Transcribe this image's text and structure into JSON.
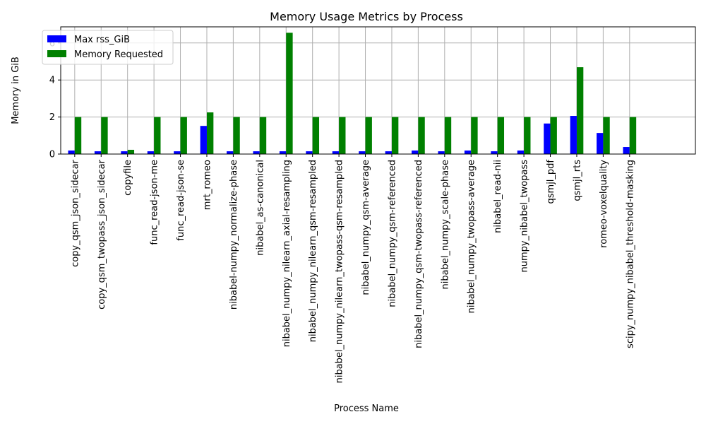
{
  "chart_data": {
    "type": "bar",
    "title": "Memory Usage Metrics by Process",
    "xlabel": "Process Name",
    "ylabel": "Memory in GiB",
    "ylim": [
      0,
      6.87
    ],
    "xlim": [
      -0.53,
      23.49
    ],
    "yticks": [
      0,
      2,
      4,
      6
    ],
    "grid": true,
    "legend_position": "upper-left",
    "categories": [
      "copy_qsm_json_sidecar",
      "copy_qsm_twopass_json_sidecar",
      "copyfile",
      "func_read-json-me",
      "func_read-json-se",
      "mrt_romeo",
      "nibabel-numpy_normalize-phase",
      "nibabel_as-canonical",
      "nibabel_numpy_nilearn_axial-resampling",
      "nibabel_numpy_nilearn_qsm-resampled",
      "nibabel_numpy_nilearn_twopass-qsm-resampled",
      "nibabel_numpy_qsm-average",
      "nibabel_numpy_qsm-referenced",
      "nibabel_numpy_qsm-twopass-referenced",
      "nibabel_numpy_scale-phase",
      "nibabel_numpy_twopass-average",
      "nibabel_read-nii",
      "numpy_nibabel_twopass",
      "qsmjl_pdf",
      "qsmjl_rts",
      "romeo-voxelquality",
      "scipy_numpy_nibabel_threshold-masking"
    ],
    "series": [
      {
        "name": "Max rss_GiB",
        "color": "#0000ff",
        "values": [
          0.19,
          0.15,
          0.15,
          0.15,
          0.15,
          1.52,
          0.15,
          0.15,
          0.15,
          0.15,
          0.15,
          0.15,
          0.15,
          0.19,
          0.15,
          0.19,
          0.15,
          0.19,
          1.65,
          2.06,
          1.14,
          0.38
        ]
      },
      {
        "name": "Memory Requested",
        "color": "#008000",
        "values": [
          2,
          2,
          0.23,
          2,
          2,
          2.25,
          2,
          2,
          6.55,
          2,
          2,
          2,
          2,
          2,
          2,
          2,
          2,
          2,
          2,
          4.69,
          2,
          2
        ]
      }
    ]
  }
}
